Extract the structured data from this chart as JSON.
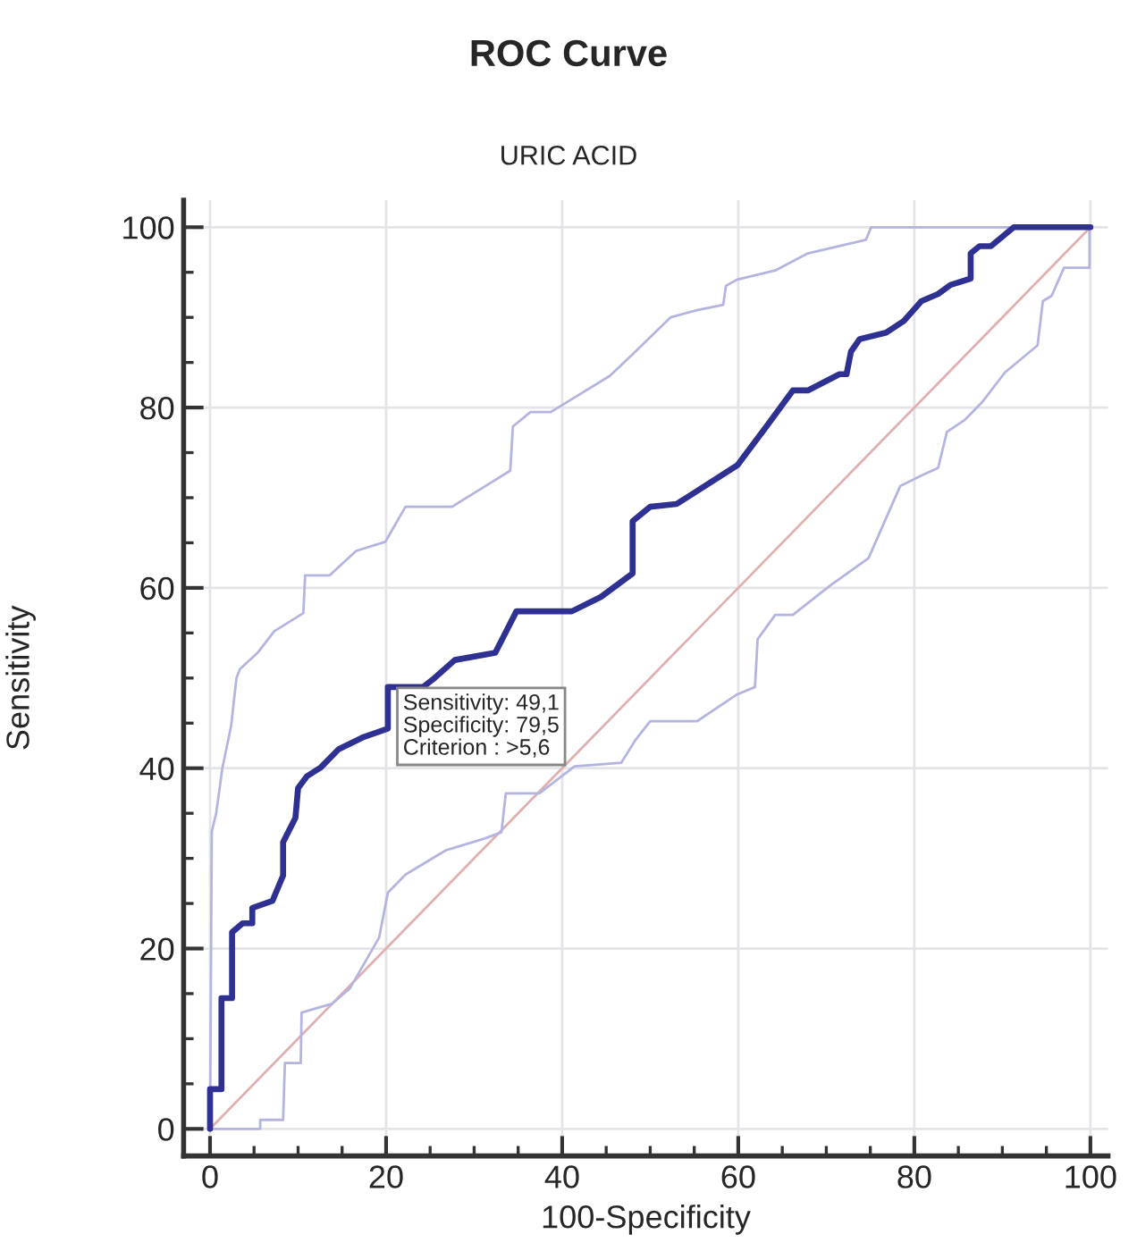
{
  "chart_data": {
    "type": "line",
    "title": "ROC Curve",
    "subtitle": "URIC ACID",
    "xlabel": "100-Specificity",
    "ylabel": "Sensitivity",
    "xlim": [
      -3,
      102
    ],
    "ylim": [
      -3,
      103
    ],
    "xticks": [
      0,
      {
        "value": 5,
        "label": null
      },
      {
        "value": 10,
        "label": null
      },
      {
        "value": 15,
        "label": null
      },
      20,
      {
        "value": 25,
        "label": null
      },
      {
        "value": 30,
        "label": null
      },
      {
        "value": 35,
        "label": null
      },
      40,
      {
        "value": 45,
        "label": null
      },
      {
        "value": 50,
        "label": null
      },
      {
        "value": 55,
        "label": null
      },
      60,
      {
        "value": 65,
        "label": null
      },
      {
        "value": 70,
        "label": null
      },
      {
        "value": 75,
        "label": null
      },
      80,
      {
        "value": 85,
        "label": null
      },
      {
        "value": 90,
        "label": null
      },
      {
        "value": 95,
        "label": null
      },
      100
    ],
    "yticks": [
      0,
      {
        "value": 5,
        "label": null
      },
      {
        "value": 10,
        "label": null
      },
      {
        "value": 15,
        "label": null
      },
      20,
      {
        "value": 25,
        "label": null
      },
      {
        "value": 30,
        "label": null
      },
      {
        "value": 35,
        "label": null
      },
      40,
      {
        "value": 45,
        "label": null
      },
      {
        "value": 50,
        "label": null
      },
      {
        "value": 55,
        "label": null
      },
      60,
      {
        "value": 65,
        "label": null
      },
      {
        "value": 70,
        "label": null
      },
      {
        "value": 75,
        "label": null
      },
      80,
      {
        "value": 85,
        "label": null
      },
      {
        "value": 90,
        "label": null
      },
      {
        "value": 95,
        "label": null
      },
      100
    ],
    "grid": true,
    "line_style": "solid",
    "series": [
      {
        "color": "#e0b0b0",
        "x": [
          0,
          100
        ],
        "values": [
          0,
          100
        ]
      },
      {
        "color": "#b4b4e0",
        "x": [
          0,
          0.2,
          0.7,
          1.4,
          2.4,
          3,
          3.4,
          5.4,
          7.3,
          10.6,
          10.8,
          13.6,
          16.6,
          19.9,
          22.2,
          27.5,
          30.8,
          34.1,
          34.4,
          36.4,
          38.7,
          45.4,
          48,
          52.3,
          55.3,
          58.3,
          58.6,
          59.9,
          64.2,
          67.9,
          74.5,
          75.1,
          100
        ],
        "values": [
          0,
          33,
          35,
          40,
          44.7,
          50,
          51,
          52.8,
          55.2,
          57.2,
          61.4,
          61.4,
          64.1,
          65.1,
          69,
          69,
          71,
          73,
          77.9,
          79.5,
          79.5,
          83.5,
          85.9,
          90,
          90.8,
          91.4,
          93.5,
          94.2,
          95.2,
          97.1,
          98.6,
          100,
          100
        ]
      },
      {
        "color": "#b4b4e0",
        "x": [
          0,
          5.7,
          5.7,
          8.3,
          8.5,
          10.3,
          10.4,
          13.9,
          15.9,
          19.2,
          20.2,
          22.2,
          26.8,
          31.2,
          33.1,
          33.6,
          37.4,
          41.4,
          46.7,
          48.3,
          50,
          55.3,
          59.9,
          61.9,
          62.2,
          64.2,
          66.2,
          70.5,
          74.8,
          78.4,
          81.1,
          82.7,
          83.7,
          85.7,
          87.7,
          90.3,
          94,
          94.6,
          95.6,
          97,
          99.9,
          99.9
        ],
        "values": [
          0,
          0,
          1,
          1,
          7.3,
          7.3,
          12.9,
          13.9,
          15.6,
          21.2,
          26.2,
          28.2,
          30.9,
          32.2,
          32.9,
          37.2,
          37.2,
          40.2,
          40.6,
          43.1,
          45.2,
          45.2,
          48.2,
          49,
          54.3,
          57,
          57,
          60.3,
          63.3,
          71.3,
          72.6,
          73.3,
          77.3,
          78.6,
          80.6,
          83.9,
          86.9,
          91.8,
          92.4,
          95.5,
          95.5,
          100
        ]
      },
      {
        "color": "#2e3192",
        "x": [
          0,
          0,
          1.3,
          1.3,
          2.5,
          2.5,
          3.7,
          4.8,
          4.8,
          7.1,
          8.3,
          8.3,
          9.7,
          10,
          11,
          12.6,
          14.6,
          17.3,
          20.2,
          20.2,
          24.2,
          25.5,
          27.8,
          32.4,
          34.8,
          41.1,
          44.4,
          48,
          48,
          50,
          53,
          59.9,
          63.2,
          66.2,
          67.9,
          71.5,
          72.3,
          72.8,
          73.8,
          76.8,
          78.8,
          80.8,
          82.7,
          84.1,
          86.4,
          86.4,
          87.4,
          88.7,
          91.3,
          100
        ],
        "values": [
          0,
          4.4,
          4.4,
          14.5,
          14.5,
          21.8,
          22.8,
          22.8,
          24.5,
          25.3,
          28.1,
          31.8,
          34.5,
          37.8,
          39.1,
          40.1,
          42.1,
          43.4,
          44.4,
          49,
          49,
          50,
          52,
          52.8,
          57.4,
          57.4,
          59,
          61.6,
          67.4,
          69,
          69.3,
          73.6,
          77.9,
          81.9,
          81.9,
          83.7,
          83.7,
          86.2,
          87.6,
          88.3,
          89.6,
          91.8,
          92.6,
          93.6,
          94.3,
          97.1,
          97.9,
          97.9,
          100,
          100
        ]
      }
    ],
    "annotations": [
      {
        "text": "Sensitivity: 49,1\nSpecificity: 79,5\nCriterion : >5,6",
        "x": 20.5,
        "y": 49.1
      }
    ]
  }
}
